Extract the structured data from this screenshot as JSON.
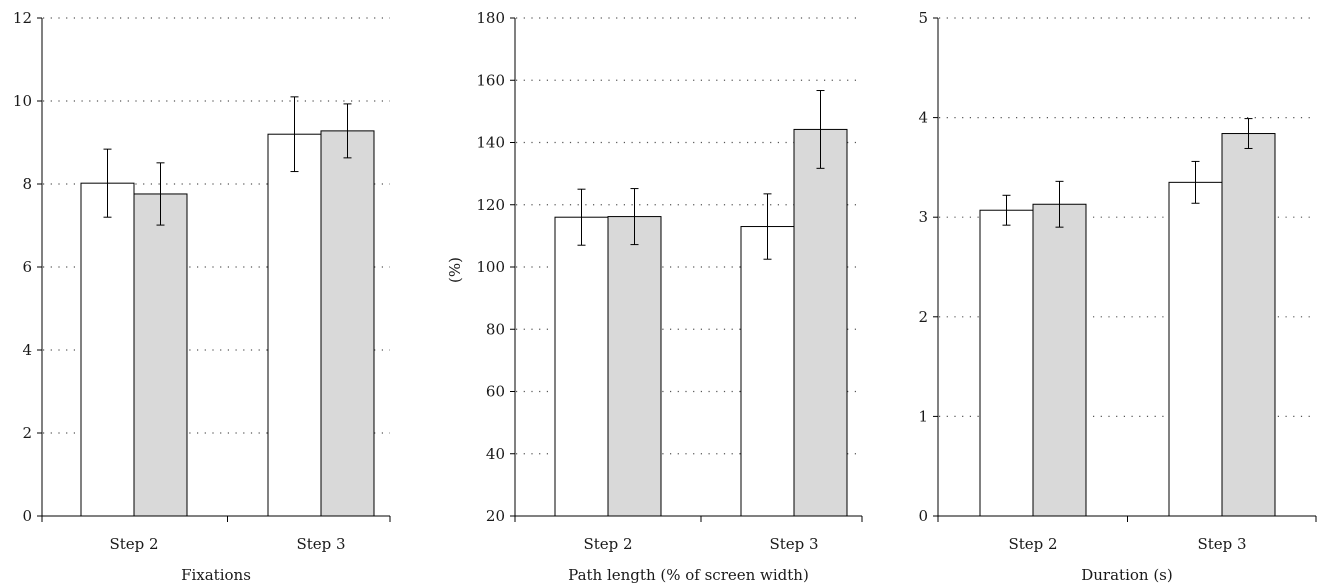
{
  "chart_data": [
    {
      "type": "bar",
      "categories": [
        "Step 2",
        "Step 3"
      ],
      "series": [
        {
          "values": [
            8.02,
            9.2
          ],
          "error": [
            0.82,
            0.9
          ],
          "color": "#ffffff"
        },
        {
          "values": [
            7.76,
            9.28
          ],
          "error": [
            0.75,
            0.65
          ],
          "color": "#d9d9d9"
        }
      ],
      "xlabel": "Fixations",
      "ylabel": "",
      "ylim": [
        0,
        12
      ],
      "yticks": [
        "0",
        "2",
        "4",
        "6",
        "8",
        "10",
        "12"
      ],
      "grid": "dotted horizontal"
    },
    {
      "type": "bar",
      "categories": [
        "Step 2",
        "Step 3"
      ],
      "series": [
        {
          "values": [
            116,
            113
          ],
          "error": [
            9,
            10.5
          ],
          "color": "#ffffff"
        },
        {
          "values": [
            116.2,
            144.2
          ],
          "error": [
            9,
            12.5
          ],
          "color": "#d9d9d9"
        }
      ],
      "xlabel": "Path length (% of screen width)",
      "ylabel": "(%)",
      "ylim": [
        20,
        180
      ],
      "yticks": [
        "20",
        "40",
        "60",
        "80",
        "100",
        "120",
        "140",
        "160",
        "180"
      ],
      "grid": "dotted horizontal"
    },
    {
      "type": "bar",
      "categories": [
        "Step 2",
        "Step 3"
      ],
      "series": [
        {
          "values": [
            3.07,
            3.35
          ],
          "error": [
            0.15,
            0.21
          ],
          "color": "#ffffff"
        },
        {
          "values": [
            3.13,
            3.84
          ],
          "error": [
            0.23,
            0.15
          ],
          "color": "#d9d9d9"
        }
      ],
      "xlabel": "Duration (s)",
      "ylabel": "",
      "ylim": [
        0,
        5
      ],
      "yticks": [
        "0",
        "1",
        "2",
        "3",
        "4",
        "5"
      ],
      "grid": "dotted horizontal"
    }
  ]
}
